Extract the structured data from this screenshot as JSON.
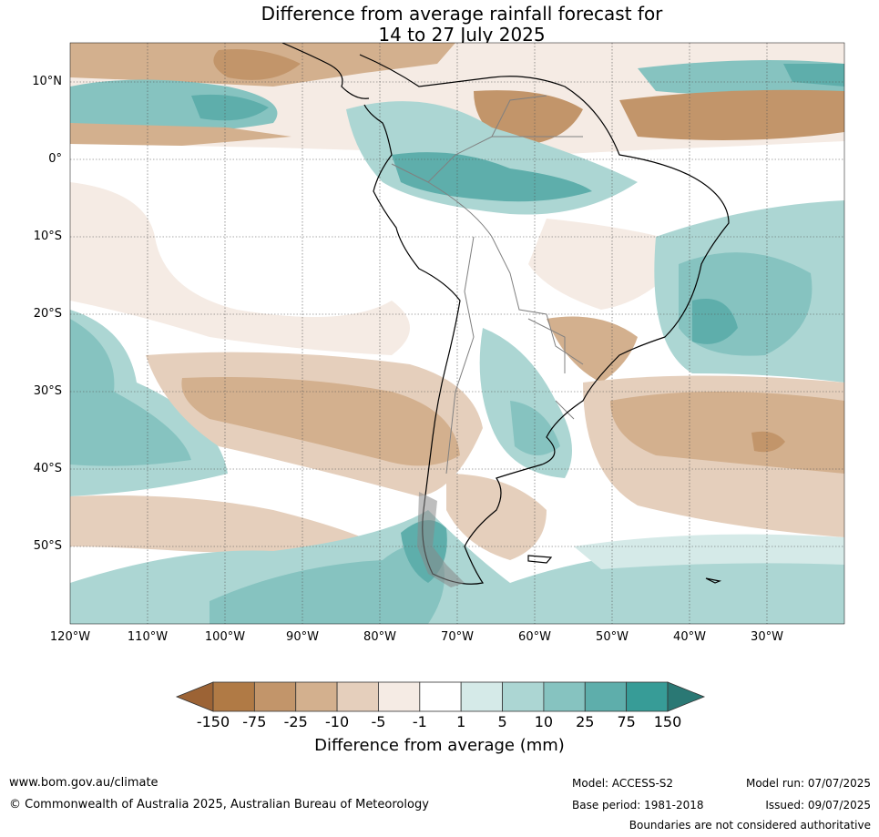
{
  "title": {
    "line1": "Difference from average rainfall forecast for",
    "line2": "14 to 27 July 2025"
  },
  "map": {
    "lat_labels": [
      "10°N",
      "0°",
      "10°S",
      "20°S",
      "30°S",
      "40°S",
      "50°S"
    ],
    "lon_labels": [
      "120°W",
      "110°W",
      "100°W",
      "90°W",
      "80°W",
      "70°W",
      "60°W",
      "50°W",
      "40°W",
      "30°W"
    ]
  },
  "legend": {
    "tick_labels": [
      "-150",
      "-75",
      "-25",
      "-10",
      "-5",
      "-1",
      "1",
      "5",
      "10",
      "25",
      "75",
      "150"
    ],
    "colors": [
      "#9c6335",
      "#b07a45",
      "#c2956a",
      "#d3b08e",
      "#e5cfbc",
      "#f5ebe4",
      "#ffffff",
      "#d5eae8",
      "#acd6d3",
      "#86c3c0",
      "#5eaeab",
      "#379c97",
      "#2a7874"
    ],
    "title": "Difference from average (mm)"
  },
  "footer": {
    "website": "www.bom.gov.au/climate",
    "copyright": "© Commonwealth of Australia 2025, Australian Bureau of Meteorology",
    "model": "Model: ACCESS-S2",
    "model_run": "Model run: 07/07/2025",
    "base_period": "Base period: 1981-2018",
    "issued": "Issued: 09/07/2025",
    "disclaimer": "Boundaries are not considered authoritative"
  }
}
